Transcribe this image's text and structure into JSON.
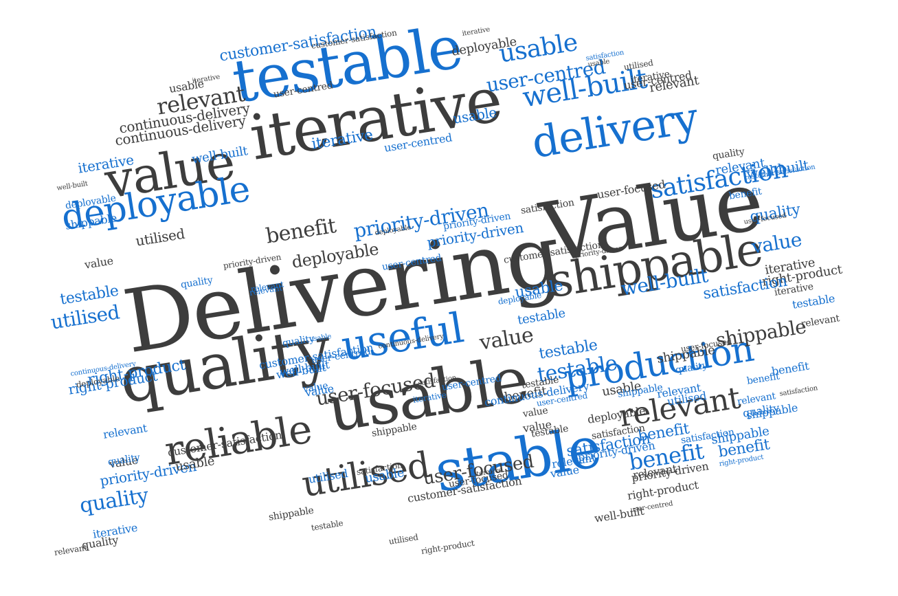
{
  "colors": {
    "dark": "#3d3d3d",
    "blue": "#1670cf",
    "background": "#ffffff"
  },
  "words": [
    {
      "t": "Delivering",
      "c": "dark"
    },
    {
      "t": "Value",
      "c": "dark"
    },
    {
      "t": "testable",
      "c": "blue"
    },
    {
      "t": "iterative",
      "c": "dark"
    },
    {
      "t": "value",
      "c": "dark"
    },
    {
      "t": "delivery",
      "c": "blue"
    },
    {
      "t": "shippable",
      "c": "dark"
    },
    {
      "t": "quality",
      "c": "dark"
    },
    {
      "t": "usable",
      "c": "dark"
    },
    {
      "t": "stable",
      "c": "blue"
    },
    {
      "t": "useful",
      "c": "blue"
    },
    {
      "t": "production",
      "c": "blue"
    },
    {
      "t": "reliable",
      "c": "dark"
    },
    {
      "t": "deployable",
      "c": "blue"
    },
    {
      "t": "well-built",
      "c": "blue"
    },
    {
      "t": "utilised",
      "c": "dark"
    },
    {
      "t": "relevant",
      "c": "dark"
    },
    {
      "t": "satisfaction",
      "c": "blue"
    },
    {
      "t": "usable",
      "c": "blue"
    },
    {
      "t": "user-centred",
      "c": "blue"
    },
    {
      "t": "customer-satisfaction",
      "c": "blue"
    },
    {
      "t": "continuous-delivery",
      "c": "dark"
    },
    {
      "t": "priority-driven",
      "c": "blue"
    },
    {
      "t": "benefit",
      "c": "dark"
    },
    {
      "t": "deployable",
      "c": "dark"
    },
    {
      "t": "relevant",
      "c": "dark"
    },
    {
      "t": "benefit",
      "c": "blue"
    },
    {
      "t": "value",
      "c": "dark"
    },
    {
      "t": "shippable",
      "c": "dark"
    },
    {
      "t": "user-focused",
      "c": "dark"
    },
    {
      "t": "testable",
      "c": "blue"
    },
    {
      "t": "value",
      "c": "blue"
    },
    {
      "t": "quality",
      "c": "blue"
    },
    {
      "t": "utilised",
      "c": "blue"
    },
    {
      "t": "right-product",
      "c": "blue"
    },
    {
      "t": "iterative",
      "c": "blue"
    },
    {
      "t": "well-built",
      "c": "blue"
    },
    {
      "t": "usable",
      "c": "blue"
    },
    {
      "t": "iterative",
      "c": "blue"
    },
    {
      "t": "quality",
      "c": "blue"
    },
    {
      "t": "utilised",
      "c": "dark"
    },
    {
      "t": "well-built",
      "c": "blue"
    },
    {
      "t": "user-centred",
      "c": "blue"
    },
    {
      "t": "priority-driven",
      "c": "blue"
    },
    {
      "t": "testable",
      "c": "blue"
    },
    {
      "t": "value",
      "c": "dark"
    },
    {
      "t": "iterative",
      "c": "dark"
    },
    {
      "t": "customer-satisfaction",
      "c": "blue"
    },
    {
      "t": "well-built",
      "c": "blue"
    },
    {
      "t": "user-focused",
      "c": "dark"
    },
    {
      "t": "satisfaction",
      "c": "dark"
    },
    {
      "t": "priority-driven",
      "c": "blue"
    },
    {
      "t": "customer-satisfaction",
      "c": "dark"
    },
    {
      "t": "usable",
      "c": "blue"
    },
    {
      "t": "user-centred",
      "c": "blue"
    },
    {
      "t": "deployable",
      "c": "blue"
    },
    {
      "t": "quality",
      "c": "blue"
    },
    {
      "t": "relevant",
      "c": "blue"
    },
    {
      "t": "shippable",
      "c": "blue"
    },
    {
      "t": "benefit",
      "c": "blue"
    },
    {
      "t": "testable",
      "c": "blue"
    },
    {
      "t": "value",
      "c": "blue"
    },
    {
      "t": "continuous-delivery",
      "c": "dark"
    },
    {
      "t": "satisfaction",
      "c": "dark"
    },
    {
      "t": "relevant",
      "c": "blue"
    },
    {
      "t": "shippable",
      "c": "dark"
    },
    {
      "t": "benefit",
      "c": "blue"
    },
    {
      "t": "usable",
      "c": "dark"
    },
    {
      "t": "user-centred",
      "c": "dark"
    },
    {
      "t": "iterative",
      "c": "dark"
    },
    {
      "t": "deployable",
      "c": "dark"
    },
    {
      "t": "customer-satisfaction",
      "c": "dark"
    },
    {
      "t": "continuous-delivery",
      "c": "blue"
    },
    {
      "t": "iterative",
      "c": "dark"
    },
    {
      "t": "utilised",
      "c": "dark"
    },
    {
      "t": "iterative",
      "c": "dark"
    },
    {
      "t": "usable",
      "c": "dark"
    },
    {
      "t": "satisfaction",
      "c": "blue"
    },
    {
      "t": "well-built",
      "c": "dark"
    },
    {
      "t": "right-product",
      "c": "blue"
    },
    {
      "t": "user-focused",
      "c": "dark"
    },
    {
      "t": "priority-driven",
      "c": "dark"
    },
    {
      "t": "user-centred",
      "c": "dark"
    },
    {
      "t": "relevant",
      "c": "blue"
    },
    {
      "t": "usable",
      "c": "blue"
    },
    {
      "t": "testable",
      "c": "blue"
    },
    {
      "t": "benefit",
      "c": "dark"
    },
    {
      "t": "usable",
      "c": "dark"
    },
    {
      "t": "value",
      "c": "blue"
    },
    {
      "t": "quality",
      "c": "blue"
    },
    {
      "t": "user-centred",
      "c": "blue"
    },
    {
      "t": "right-product",
      "c": "blue"
    },
    {
      "t": "testable",
      "c": "dark"
    },
    {
      "t": "deployable",
      "c": "blue"
    },
    {
      "t": "relevant",
      "c": "dark"
    },
    {
      "t": "user-centred",
      "c": "blue"
    },
    {
      "t": "iterative",
      "c": "blue"
    },
    {
      "t": "quality",
      "c": "dark"
    },
    {
      "t": "well-built",
      "c": "blue"
    },
    {
      "t": "benefit",
      "c": "blue"
    },
    {
      "t": "shippable",
      "c": "blue"
    },
    {
      "t": "priority-driven",
      "c": "blue"
    },
    {
      "t": "value",
      "c": "dark"
    },
    {
      "t": "well-built",
      "c": "dark"
    },
    {
      "t": "right-product",
      "c": "dark"
    },
    {
      "t": "user-centred",
      "c": "dark"
    },
    {
      "t": "shippable",
      "c": "dark"
    },
    {
      "t": "satisfaction",
      "c": "dark"
    },
    {
      "t": "user-focused",
      "c": "dark"
    },
    {
      "t": "iterative",
      "c": "dark"
    },
    {
      "t": "testable",
      "c": "dark"
    },
    {
      "t": "right-product",
      "c": "dark"
    },
    {
      "t": "utilised",
      "c": "dark"
    },
    {
      "t": "value",
      "c": "dark"
    },
    {
      "t": "quality",
      "c": "blue"
    },
    {
      "t": "usable",
      "c": "blue"
    },
    {
      "t": "utilised",
      "c": "blue"
    },
    {
      "t": "satisfaction",
      "c": "blue"
    },
    {
      "t": "relevant",
      "c": "blue"
    },
    {
      "t": "value",
      "c": "blue"
    },
    {
      "t": "testable",
      "c": "blue"
    },
    {
      "t": "relevant",
      "c": "dark"
    },
    {
      "t": "shippable",
      "c": "blue"
    },
    {
      "t": "utilised",
      "c": "blue"
    },
    {
      "t": "benefit",
      "c": "blue"
    },
    {
      "t": "quality",
      "c": "blue"
    },
    {
      "t": "relevant",
      "c": "blue"
    },
    {
      "t": "satisfaction",
      "c": "dark"
    },
    {
      "t": "iterative",
      "c": "dark"
    },
    {
      "t": "right-product",
      "c": "dark"
    },
    {
      "t": "user-focused",
      "c": "dark"
    },
    {
      "t": "customer-satisfaction",
      "c": "blue"
    },
    {
      "t": "priority-driven",
      "c": "dark"
    },
    {
      "t": "deployable",
      "c": "dark"
    },
    {
      "t": "customer-satisfaction",
      "c": "dark"
    },
    {
      "t": "continuous-delivery",
      "c": "dark"
    },
    {
      "t": "satisfaction",
      "c": "dark"
    },
    {
      "t": "well-built",
      "c": "blue"
    },
    {
      "t": "relevant",
      "c": "dark"
    },
    {
      "t": "quality",
      "c": "dark"
    },
    {
      "t": "relevant",
      "c": "dark"
    },
    {
      "t": "usable",
      "c": "dark"
    },
    {
      "t": "customer-satisfaction",
      "c": "dark"
    },
    {
      "t": "user-centred",
      "c": "blue"
    },
    {
      "t": "priority-driven",
      "c": "dark"
    },
    {
      "t": "benefit",
      "c": "blue"
    },
    {
      "t": "satisfaction",
      "c": "blue"
    },
    {
      "t": "quality",
      "c": "blue"
    },
    {
      "t": "deployable",
      "c": "dark"
    },
    {
      "t": "iterative",
      "c": "blue"
    },
    {
      "t": "relevant",
      "c": "blue"
    },
    {
      "t": "continuous-delivery",
      "c": "blue"
    },
    {
      "t": "shippable",
      "c": "dark"
    },
    {
      "t": "value",
      "c": "dark"
    },
    {
      "t": "user-focused",
      "c": "dark"
    },
    {
      "t": "testable",
      "c": "dark"
    },
    {
      "t": "deployable",
      "c": "dark"
    },
    {
      "t": "shippable",
      "c": "blue"
    },
    {
      "t": "priority-driven",
      "c": "blue"
    },
    {
      "t": "satisfaction",
      "c": "blue"
    },
    {
      "t": "relevant",
      "c": "blue"
    }
  ]
}
